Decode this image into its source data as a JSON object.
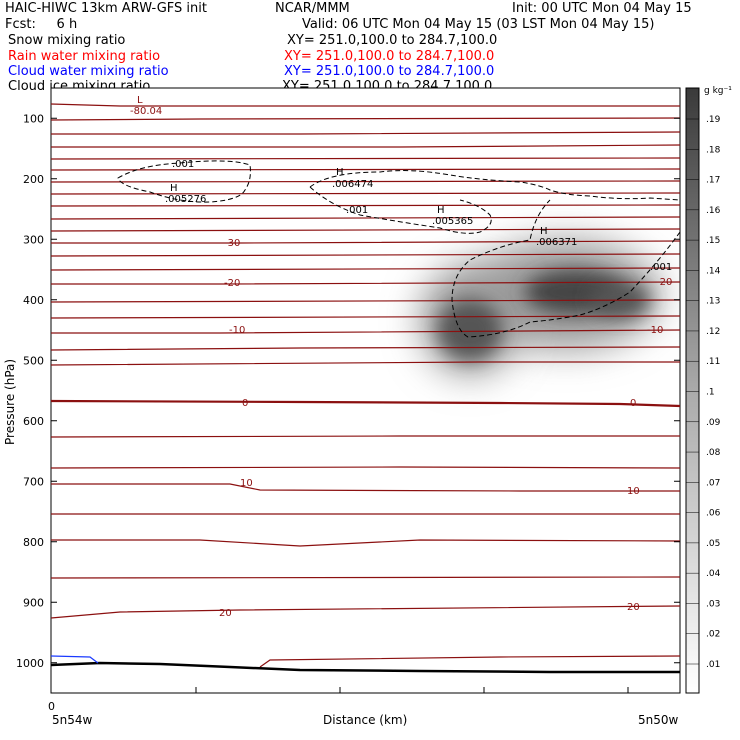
{
  "header": {
    "left1": "HAIC-HIWC 13km ARW-GFS init",
    "left2": "Fcst:     6 h",
    "center1": "NCAR/MMM",
    "right1": "Init: 00 UTC Mon 04 May 15",
    "valid": "Valid: 06 UTC Mon 04 May 15 (03 LST Mon 04 May 15)",
    "fields": [
      {
        "label": "Snow mixing ratio",
        "xy": "XY= 251.0,100.0 to 284.7,100.0",
        "color": "#000000"
      },
      {
        "label": "Rain water mixing ratio",
        "xy": "XY= 251.0,100.0 to 284.7,100.0",
        "color": "#ff0000"
      },
      {
        "label": "Cloud water mixing ratio",
        "xy": "XY= 251.0,100.0 to 284.7,100.0",
        "color": "#0000ff"
      },
      {
        "label": "Cloud ice mixing ratio",
        "xy": "XY= 251.0,100.0 to 284.7,100.0",
        "color": "#000000"
      }
    ]
  },
  "chart_data": {
    "type": "heatmap",
    "ylabel": "Pressure (hPa)",
    "xlabel": "Distance (km)",
    "yticks": [
      100,
      200,
      300,
      400,
      500,
      600,
      700,
      800,
      900,
      1000
    ],
    "xtick_zero": "0",
    "x_left_label": "5n54w",
    "x_right_label": "5n50w",
    "ylim": [
      50,
      1050
    ],
    "colorbar": {
      "unit": "g kg⁻¹",
      "ticks": [
        ".01",
        ".02",
        ".03",
        ".04",
        ".05",
        ".06",
        ".07",
        ".08",
        ".09",
        ".1",
        ".11",
        ".12",
        ".13",
        ".14",
        ".15",
        ".16",
        ".17",
        ".18",
        ".19"
      ]
    },
    "temperature_contour_labels": [
      "-80.04",
      "-30",
      "-20",
      "-20",
      "-10",
      "-10",
      "0",
      "0",
      "10",
      "10",
      "20",
      "20"
    ],
    "ice_contour_labels": [
      ".001",
      ".001",
      ".001"
    ],
    "extrema": [
      {
        "type": "L",
        "value": ""
      },
      {
        "type": "H",
        "value": ".005276"
      },
      {
        "type": "H",
        "value": ".006474"
      },
      {
        "type": "H",
        "value": ".005365"
      },
      {
        "type": "H",
        "value": ".006371"
      }
    ]
  }
}
